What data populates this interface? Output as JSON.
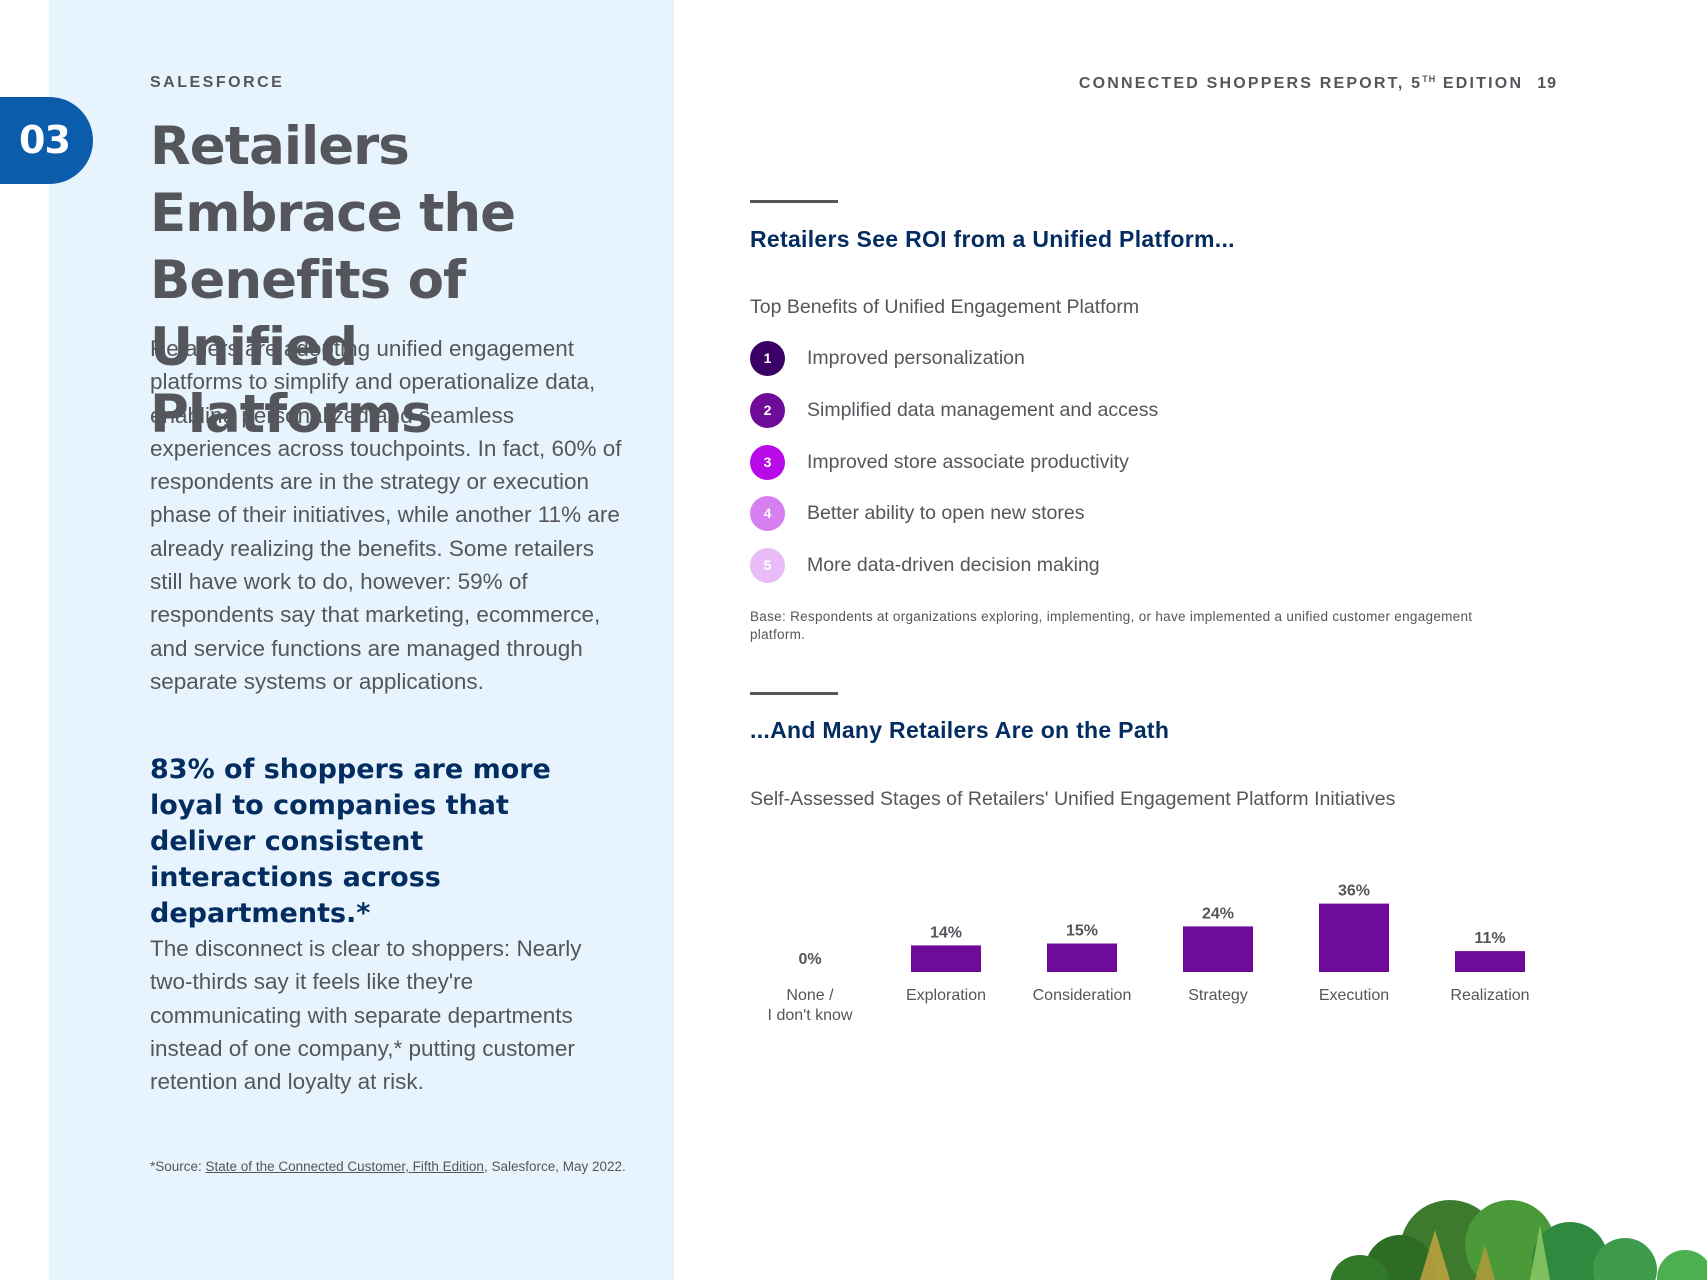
{
  "section": {
    "number": "03"
  },
  "brand": "SALESFORCE",
  "report": {
    "title_pre": "CONNECTED SHOPPERS REPORT, 5",
    "title_sup": "TH",
    "title_post": " EDITION",
    "page": "19"
  },
  "left": {
    "title": "Retailers Embrace the Benefits of Unified Platforms",
    "body1": "Retailers are adopting unified engagement platforms to simplify and operationalize data, enabling personalized and seamless experiences across touchpoints. In fact, 60% of respondents are in the strategy or execution phase of their initiatives, while another 11% are already realizing the benefits. Some retailers still have work to do, however: 59% of respondents say that marketing, ecommerce, and service functions are managed through separate systems or applications.",
    "callout": "83% of shoppers are more loyal to companies that deliver consistent interactions across departments.*",
    "body2": "The disconnect is clear to shoppers: Nearly two-thirds say it feels like they're communicating with separate departments instead of one company,* putting customer retention and loyalty at risk.",
    "footnote": {
      "prefix": "*Source: ",
      "link": "State of the Connected Customer, Fifth Edition",
      "suffix": ", Salesforce, May 2022."
    }
  },
  "roi": {
    "heading": "Retailers See ROI from a Unified Platform...",
    "subheading": "Top Benefits of Unified Engagement Platform",
    "items": [
      {
        "num": "1",
        "label": "Improved personalization",
        "color": "#3a0066"
      },
      {
        "num": "2",
        "label": "Simplified data management and access",
        "color": "#6e0c99"
      },
      {
        "num": "3",
        "label": "Improved store associate productivity",
        "color": "#b80ae8"
      },
      {
        "num": "4",
        "label": "Better ability to open new stores",
        "color": "#d57ff0"
      },
      {
        "num": "5",
        "label": "More data-driven decision making",
        "color": "#e9bcf7"
      }
    ],
    "base_note": "Base: Respondents at organizations exploring, implementing, or have implemented a unified customer engagement platform."
  },
  "path": {
    "heading": "...And Many Retailers Are on the Path",
    "subheading": "Self-Assessed Stages of Retailers' Unified Engagement Platform Initiatives"
  },
  "chart_data": {
    "type": "bar",
    "title": "Self-Assessed Stages of Retailers' Unified Engagement Platform Initiatives",
    "categories": [
      "None /\nI don't know",
      "Exploration",
      "Consideration",
      "Strategy",
      "Execution",
      "Realization"
    ],
    "values": [
      0,
      14,
      15,
      24,
      36,
      11
    ],
    "labels": [
      "0%",
      "14%",
      "15%",
      "24%",
      "36%",
      "11%"
    ],
    "unit": "%",
    "color": "#6e0c99",
    "grid": false,
    "legend": "none"
  }
}
